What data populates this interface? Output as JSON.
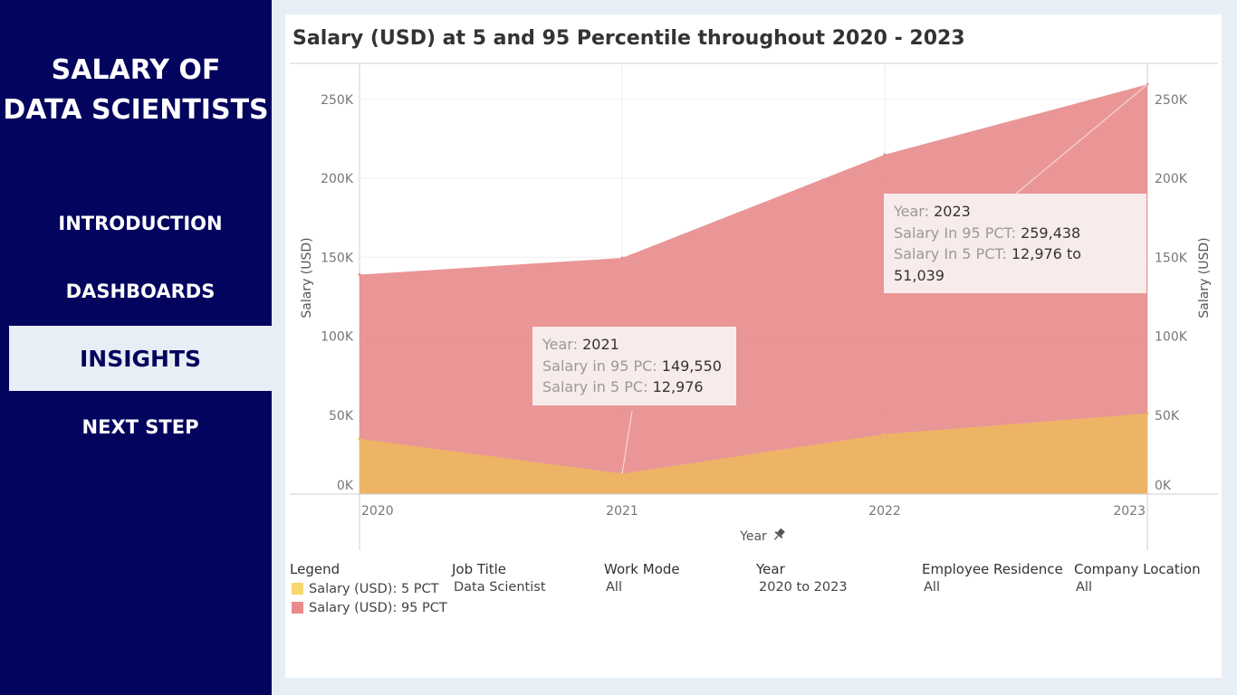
{
  "sidebar": {
    "title_line1": "SALARY OF",
    "title_line2": "DATA SCIENTISTS",
    "items": [
      {
        "label": "INTRODUCTION",
        "active": false
      },
      {
        "label": "DASHBOARDS",
        "active": false
      },
      {
        "label": "INSIGHTS",
        "active": true
      },
      {
        "label": "NEXT STEP",
        "active": false
      }
    ]
  },
  "chart_data": {
    "type": "area",
    "title": "Salary (USD) at 5 and 95 Percentile throughout 2020 - 2023",
    "xlabel": "Year",
    "ylabel": "Salary (USD)",
    "ylabel_right": "Salary (USD)",
    "x": [
      "2020",
      "2021",
      "2022",
      "2023"
    ],
    "ylim": [
      0,
      260000
    ],
    "yticks": [
      "0K",
      "50K",
      "100K",
      "150K",
      "200K",
      "250K"
    ],
    "ytick_values": [
      0,
      50000,
      100000,
      150000,
      200000,
      250000
    ],
    "series": [
      {
        "name": "Salary (USD): 95 PCT",
        "values": [
          139000,
          149550,
          215000,
          259438
        ],
        "color": "#e88b8c"
      },
      {
        "name": "Salary (USD): 5 PCT",
        "values": [
          35000,
          12976,
          38000,
          51039
        ],
        "color": "#f5d76e"
      }
    ],
    "grid": true
  },
  "tooltips": [
    {
      "year_label": "Year:",
      "year": "2021",
      "line2_label": "Salary in 95 PC:",
      "line2_value": "149,550",
      "line3_label": "Salary in 5 PC:",
      "line3_value": "12,976"
    },
    {
      "year_label": "Year:",
      "year": "2023",
      "line2_label": "Salary In 95 PCT:",
      "line2_value": "259,438",
      "line3_label": "Salary In 5 PCT:",
      "line3_value": "12,976 to 51,039"
    }
  ],
  "filters": {
    "legend": {
      "title": "Legend",
      "items": [
        "Salary (USD): 5 PCT",
        "Salary (USD): 95 PCT"
      ],
      "colors": [
        "#f5d76e",
        "#e88b8c"
      ]
    },
    "job_title": {
      "title": "Job Title",
      "value": "Data Scientist"
    },
    "work_mode": {
      "title": "Work Mode",
      "value": "All"
    },
    "year": {
      "title": "Year",
      "value": "2020 to 2023"
    },
    "employee_residence": {
      "title": "Employee Residence",
      "value": "All"
    },
    "company_location": {
      "title": "Company Location",
      "value": "All"
    }
  },
  "icons": {
    "x_axis_pin": "pin-icon"
  }
}
